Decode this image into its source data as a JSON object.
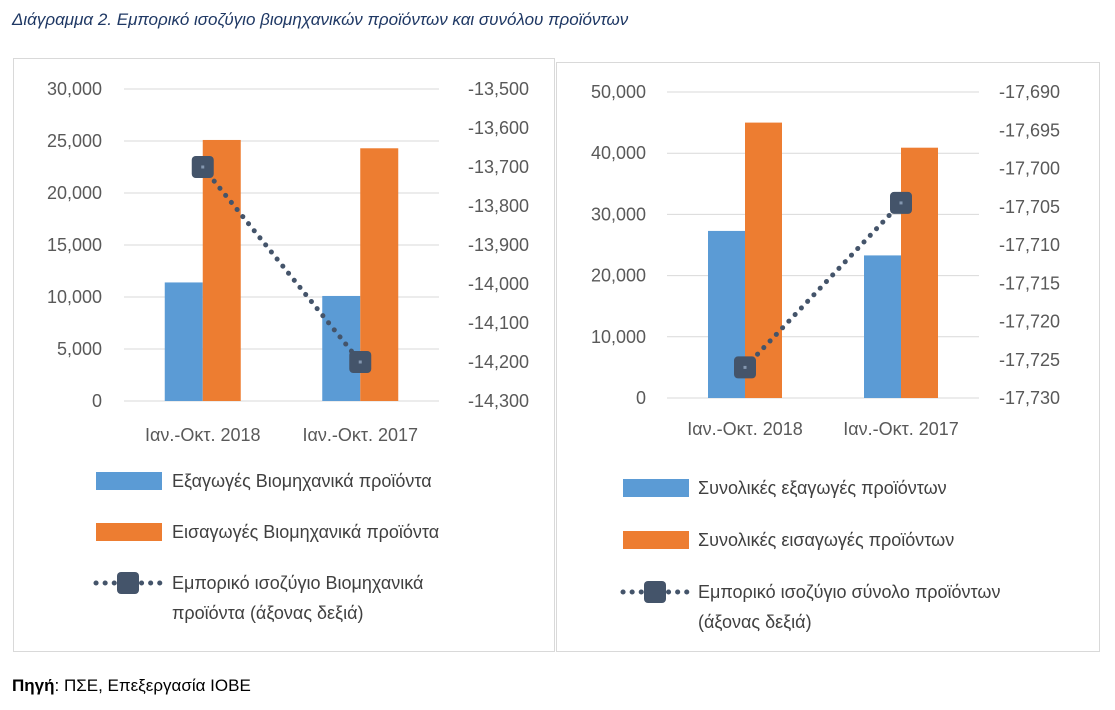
{
  "title": "Διάγραμμα 2. Εμπορικό ισοζύγιο βιομηχανικών προϊόντων και συνόλου προϊόντων",
  "source_label": "Πηγή",
  "source_text": ": ΠΣΕ, Επεξεργασία ΙΟΒΕ",
  "colors": {
    "exports": "#5b9bd5",
    "imports": "#ed7d31",
    "balance": "#44546a",
    "grid": "#d9d9d9"
  },
  "chart_data": [
    {
      "type": "bar",
      "categories": [
        "Ιαν.-Οκτ. 2018",
        "Ιαν.-Οκτ. 2017"
      ],
      "series": [
        {
          "name": "Εξαγωγές Βιομηχανικά προϊόντα",
          "values": [
            11400,
            10100
          ],
          "axis": "left"
        },
        {
          "name": "Εισαγωγές Βιομηχανικά προϊόντα",
          "values": [
            25100,
            24300
          ],
          "axis": "left"
        },
        {
          "name": "Εμπορικό ισοζύγιο Βιομηχανικά προϊόντα (άξονας δεξιά)",
          "values": [
            -13700,
            -14200
          ],
          "axis": "right",
          "type": "line"
        }
      ],
      "ylim": [
        0,
        30000
      ],
      "yticks": [
        "30,000",
        "25,000",
        "20,000",
        "15,000",
        "10,000",
        "5,000",
        "0"
      ],
      "y2lim": [
        -14300,
        -13500
      ],
      "y2ticks": [
        "-13,500",
        "-13,600",
        "-13,700",
        "-13,800",
        "-13,900",
        "-14,000",
        "-14,100",
        "-14,200",
        "-14,300"
      ],
      "grid": true,
      "legend": "bottom"
    },
    {
      "type": "bar",
      "categories": [
        "Ιαν.-Οκτ. 2018",
        "Ιαν.-Οκτ. 2017"
      ],
      "series": [
        {
          "name": "Συνολικές εξαγωγές προϊόντων",
          "values": [
            27300,
            23300
          ],
          "axis": "left"
        },
        {
          "name": "Συνολικές εισαγωγές προϊόντων",
          "values": [
            45000,
            40900
          ],
          "axis": "left"
        },
        {
          "name": "Εμπορικό ισοζύγιο σύνολο προϊόντων (άξονας δεξιά)",
          "values": [
            -17726,
            -17704.5
          ],
          "axis": "right",
          "type": "line"
        }
      ],
      "ylim": [
        0,
        50000
      ],
      "yticks": [
        "50,000",
        "40,000",
        "30,000",
        "20,000",
        "10,000",
        "0"
      ],
      "y2lim": [
        -17730,
        -17690
      ],
      "y2ticks": [
        "-17,690",
        "-17,695",
        "-17,700",
        "-17,705",
        "-17,710",
        "-17,715",
        "-17,720",
        "-17,725",
        "-17,730"
      ],
      "grid": true,
      "legend": "bottom"
    }
  ]
}
